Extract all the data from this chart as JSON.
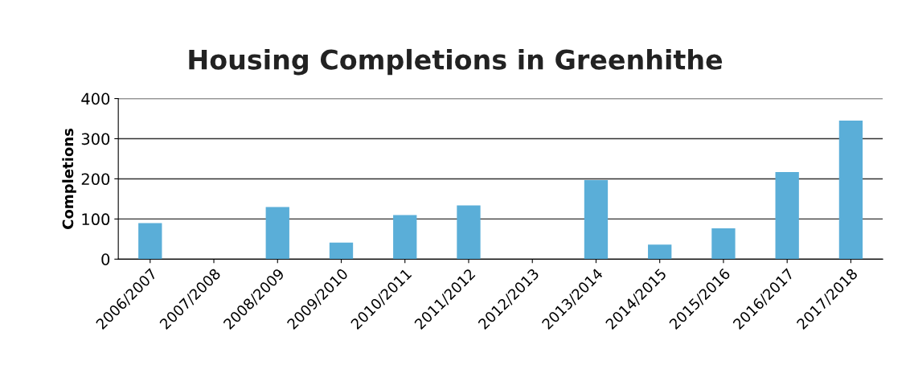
{
  "chart_data": {
    "type": "bar",
    "title": "Housing Completions in Greenhithe",
    "ylabel": "Completions",
    "categories": [
      "2006/2007",
      "2007/2008",
      "2008/2009",
      "2009/2010",
      "2010/2011",
      "2011/2012",
      "2012/2013",
      "2013/2014",
      "2014/2015",
      "2015/2016",
      "2016/2017",
      "2017/2018"
    ],
    "values": [
      90,
      0,
      130,
      41,
      110,
      134,
      0,
      197,
      36,
      77,
      217,
      345
    ],
    "color": "#5aaed8",
    "ylim": [
      0,
      400
    ],
    "yticks": [
      0,
      100,
      200,
      300,
      400
    ],
    "grid": "y"
  }
}
